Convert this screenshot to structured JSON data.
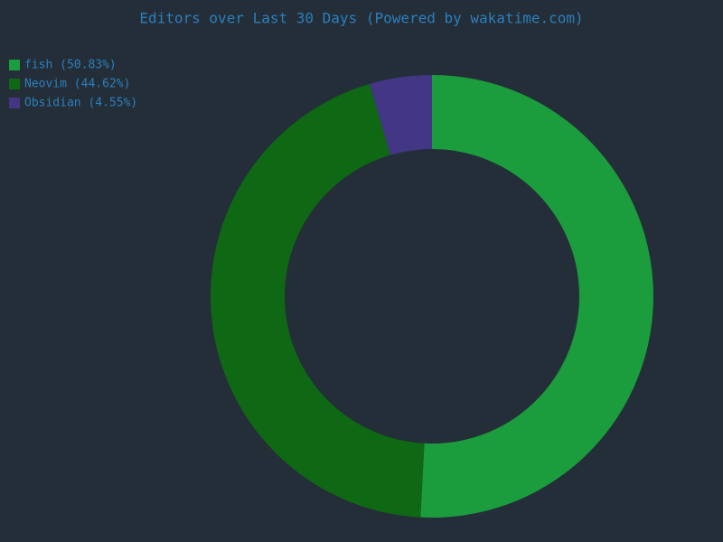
{
  "chart_data": {
    "type": "donut",
    "title": "Editors over Last 30 Days (Powered by wakatime.com)",
    "categories": [
      "fish (50.83%)",
      "Neovim (44.62%)",
      "Obsidian (4.55%)"
    ],
    "values": [
      50.83,
      44.62,
      4.55
    ],
    "colors": [
      "#1b9c3d",
      "#0f6814",
      "#433685"
    ],
    "legend": "top-left"
  }
}
